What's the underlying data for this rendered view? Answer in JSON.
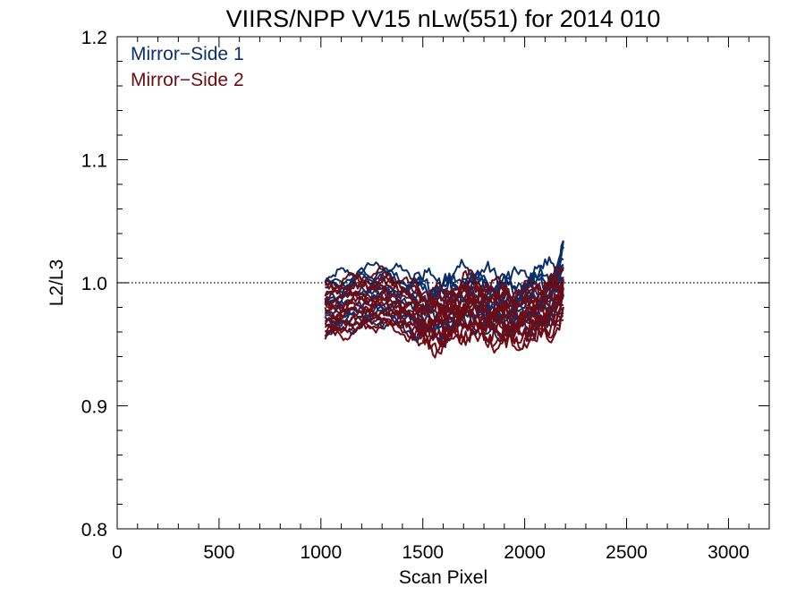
{
  "chart_data": {
    "type": "line",
    "title": "VIIRS/NPP VV15 nLw(551) for 2014 010",
    "xlabel": "Scan Pixel",
    "ylabel": "L2/L3",
    "xlim": [
      0,
      3200
    ],
    "ylim": [
      0.8,
      1.2
    ],
    "xticks": [
      0,
      500,
      1000,
      1500,
      2000,
      2500,
      3000
    ],
    "xtick_labels": [
      "0",
      "500",
      "1000",
      "1500",
      "2000",
      "2500",
      "3000"
    ],
    "yticks": [
      0.8,
      0.9,
      1.0,
      1.1,
      1.2
    ],
    "ytick_labels": [
      "0.8",
      "0.9",
      "1.0",
      "1.1",
      "1.2"
    ],
    "reference_line": {
      "y": 1.0,
      "style": "dotted"
    },
    "grid": false,
    "legend_placement": "top-left",
    "x_range_of_data": [
      1020,
      2190
    ],
    "series": [
      {
        "name": "Mirror−Side 1",
        "color": "#0b2f6b",
        "profile_x": [
          1020,
          1100,
          1200,
          1300,
          1400,
          1450,
          1500,
          1550,
          1600,
          1650,
          1700,
          1750,
          1800,
          1850,
          1900,
          1950,
          2000,
          2050,
          2100,
          2150,
          2190
        ],
        "profile_mean": [
          0.982,
          0.985,
          0.989,
          0.992,
          0.987,
          0.984,
          0.983,
          0.981,
          0.98,
          0.984,
          0.99,
          0.987,
          0.985,
          0.984,
          0.983,
          0.981,
          0.984,
          0.986,
          0.988,
          0.994,
          1.01
        ],
        "curve_offsets": [
          0.022,
          0.017,
          0.012,
          0.008,
          0.004,
          0.0,
          -0.004,
          -0.008,
          -0.012,
          -0.016,
          -0.02,
          -0.024,
          0.014,
          0.002,
          -0.014
        ]
      },
      {
        "name": "Mirror−Side 2",
        "color": "#6e0b14",
        "profile_x": [
          1020,
          1100,
          1200,
          1300,
          1400,
          1450,
          1500,
          1550,
          1600,
          1650,
          1700,
          1750,
          1800,
          1850,
          1900,
          1950,
          2000,
          2050,
          2100,
          2150,
          2190
        ],
        "profile_mean": [
          0.978,
          0.981,
          0.985,
          0.988,
          0.982,
          0.978,
          0.974,
          0.972,
          0.97,
          0.976,
          0.982,
          0.98,
          0.977,
          0.976,
          0.975,
          0.973,
          0.975,
          0.978,
          0.98,
          0.986,
          0.99
        ],
        "curve_offsets": [
          0.02,
          0.015,
          0.011,
          0.007,
          0.003,
          0.0,
          -0.004,
          -0.008,
          -0.011,
          -0.015,
          -0.019,
          -0.023,
          0.012,
          -0.002,
          -0.017
        ]
      }
    ]
  }
}
